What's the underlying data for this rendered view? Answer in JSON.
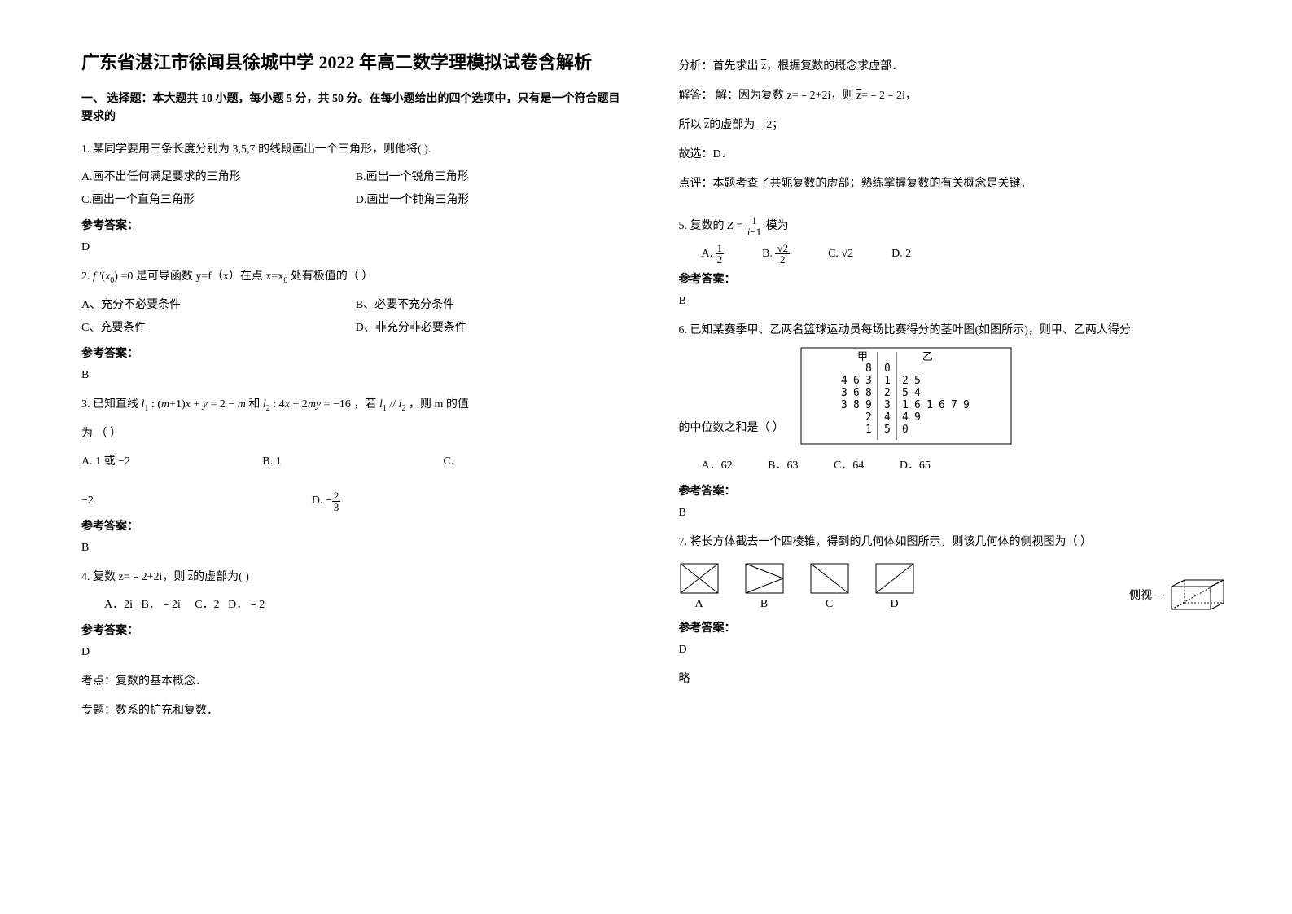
{
  "title": "广东省湛江市徐闻县徐城中学 2022 年高二数学理模拟试卷含解析",
  "section1": "一、 选择题：本大题共 10 小题，每小题 5 分，共 50 分。在每小题给出的四个选项中，只有是一个符合题目要求的",
  "q1": {
    "stem": "1. 某同学要用三条长度分别为 3,5,7 的线段画出一个三角形，则他将(   ).",
    "a": "A.画不出任何满足要求的三角形",
    "b": "B.画出一个锐角三角形",
    "c": "C.画出一个直角三角形",
    "d": "D.画出一个钝角三角形",
    "ansLabel": "参考答案：",
    "ans": "D"
  },
  "q2": {
    "pre": "2. ",
    "mid": " =0 是可导函数 y=f（x）在点 x=x",
    "suf": " 处有极值的（        ）",
    "a": "A、充分不必要条件",
    "b": "B、必要不充分条件",
    "c": "C、充要条件",
    "d": "D、非充分非必要条件",
    "ansLabel": "参考答案：",
    "ans": "B"
  },
  "q3": {
    "pre": "3. 已知直线",
    "mid1": " 和",
    "mid2": "，若",
    "suf": "，则 m 的值",
    "line2": "为            （        ）",
    "a": "A. 1 或 −2",
    "b": "B.  1",
    "c": "C.",
    "cval": "−2",
    "d": "D. ",
    "ansLabel": "参考答案：",
    "ans": "B"
  },
  "q4": {
    "stem": "4. 复数 z=﹣2+2i，则 ",
    "stem2": "的虚部为(        )",
    "a": "A．2i",
    "b": "B．﹣2i",
    "c": "C．2",
    "d": "D．﹣2",
    "ansLabel": "参考答案：",
    "ans": "D",
    "p1": "考点：复数的基本概念．",
    "p2": "专题：数系的扩充和复数．",
    "p3pre": "分析：首先求出 ",
    "p3suf": "，根据复数的概念求虚部．",
    "p4pre": "解答： 解：因为复数 z=﹣2+2i，则 ",
    "p4suf": "=﹣2﹣2i，",
    "p5pre": "所以 ",
    "p5suf": "的虚部为﹣2；",
    "p6": "故选：D．",
    "p7": "点评：本题考查了共轭复数的虚部；熟练掌握复数的有关概念是关键．"
  },
  "q5": {
    "pre": "5. 复数的 ",
    "suf": " 模为",
    "a": "A. ",
    "b": "B. ",
    "c": "C. ",
    "d": "D.  2",
    "ansLabel": "参考答案：",
    "ans": "B"
  },
  "q6": {
    "stem": "6. 已知某赛季甲、乙两名篮球运动员每场比赛得分的茎叶图(如图所示)，则甲、乙两人得分",
    "stem2": "的中位数之和是（  ）",
    "a": "A．62",
    "b": "B．63",
    "c": "C．64",
    "d": "D．65",
    "ansLabel": "参考答案：",
    "ans": "B",
    "stemHead1": "甲",
    "stemHead2": "乙",
    "leafRows": [
      [
        "",
        "",
        "8",
        "0",
        "",
        "",
        " ",
        " ",
        " ",
        " "
      ],
      [
        "4",
        "6",
        "3",
        "1",
        "2",
        "5",
        " ",
        " ",
        " ",
        " "
      ],
      [
        "3",
        "6",
        "8",
        "2",
        "5",
        "4",
        " ",
        " ",
        " ",
        " "
      ],
      [
        "3",
        "8",
        "9",
        "3",
        "1",
        "6",
        "1",
        "6",
        "7",
        "9"
      ],
      [
        "",
        "",
        "2",
        "4",
        "4",
        "9",
        " ",
        " ",
        " ",
        " "
      ],
      [
        "",
        "",
        "1",
        "5",
        "0",
        "",
        " ",
        " ",
        " ",
        " "
      ]
    ]
  },
  "q7": {
    "stem": "7. 将长方体截去一个四棱锥，得到的几何体如图所示，则该几何体的侧视图为（  ）",
    "sideLabel": "侧视",
    "a": "A",
    "b": "B",
    "c": "C",
    "d": "D",
    "ansLabel": "参考答案：",
    "ans": "D",
    "extra": "略"
  }
}
